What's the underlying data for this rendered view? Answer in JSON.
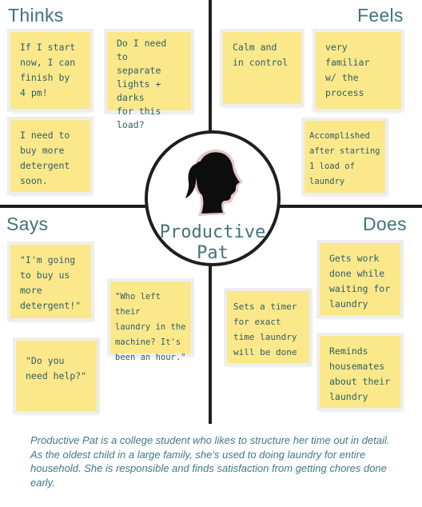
{
  "quadrants": {
    "thinks": {
      "label": "Thinks",
      "notes": [
        "If I start\nnow, I can\nfinish by\n4 pm!",
        "Do I need to\nseparate\nlights + darks\nfor this\nload?",
        "I need to\nbuy more\ndetergent\nsoon."
      ]
    },
    "feels": {
      "label": "Feels",
      "notes": [
        "Calm and\nin control",
        "very\nfamiliar\nw/ the\nprocess",
        "Accomplished\nafter starting\n1 load of\nlaundry"
      ]
    },
    "says": {
      "label": "Says",
      "notes": [
        "\"I'm going\nto buy us\nmore\ndetergent!\"",
        "\"Who left their\nlaundry in the\nmachine? It's\nbeen an hour.\"",
        "\"Do you\nneed help?\""
      ]
    },
    "does": {
      "label": "Does",
      "notes": [
        "Gets work\ndone while\nwaiting for\nlaundry",
        "Sets a timer\nfor exact\ntime laundry\nwill be done",
        "Reminds\nhousemates\nabout their\nlaundry"
      ]
    }
  },
  "persona": {
    "name": "Productive\nPat",
    "icon": "woman-profile-silhouette-icon",
    "description": "Productive Pat is a college student who likes to structure her time out in detail. As the oldest child in a large family, she's used to doing laundry for entire household. She is responsible and finds satisfaction from getting chores done early."
  },
  "colors": {
    "note": "#fbe88b",
    "accent": "#43727c",
    "axis": "#1f1f1f"
  }
}
